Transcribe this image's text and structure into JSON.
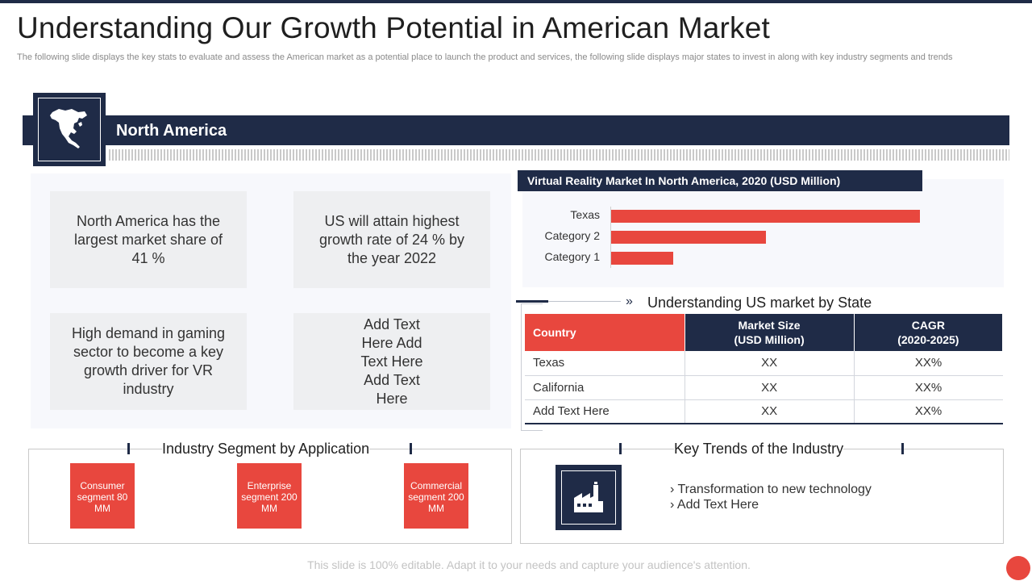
{
  "title": "Understanding Our Growth Potential in American Market",
  "subtitle": "The following slide displays the key stats to evaluate and assess the American market as a potential place to launch the product and services, the following slide displays major states to invest in along with key industry segments and trends",
  "region": {
    "label": "North America",
    "icon": "north-america-map-icon"
  },
  "stats": [
    "North America has the largest market share of 41 %",
    "US will attain highest growth rate of 24 % by the year 2022",
    "High demand in gaming sector to become a key growth driver for VR industry",
    "Add Text Here Add Text Here Add Text Here"
  ],
  "chart_data": {
    "type": "bar",
    "orientation": "horizontal",
    "title": "Virtual Reality Market In North America,  2020 (USD Million)",
    "categories": [
      "Texas",
      "Category 2",
      "Category 1"
    ],
    "values": [
      100,
      50,
      20
    ],
    "color": "#e8473e",
    "grid": false
  },
  "state_section": {
    "title": "Understanding US market by State",
    "headers": [
      "Country",
      "Market Size\n(USD Million)",
      "CAGR\n(2020-2025)"
    ],
    "rows": [
      [
        "Texas",
        "XX",
        "XX%"
      ],
      [
        "California",
        "XX",
        "XX%"
      ],
      [
        "Add Text Here",
        "XX",
        "XX%"
      ]
    ]
  },
  "segments": {
    "title": "Industry Segment by Application",
    "items": [
      "Consumer segment 80 MM",
      "Enterprise segment 200 MM",
      "Commercial segment 200 MM"
    ]
  },
  "trends": {
    "title": "Key Trends of the Industry",
    "icon": "factory-icon",
    "items": [
      "› Transformation  to new technology",
      "› Add Text Here"
    ]
  },
  "footer": "This slide is 100% editable. Adapt it to your needs and capture your audience's attention.",
  "colors": {
    "navy": "#1f2b47",
    "red": "#e8473e",
    "panel": "#f7f8fc"
  }
}
